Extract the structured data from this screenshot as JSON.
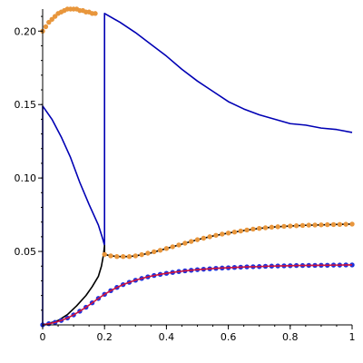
{
  "chart_data": {
    "type": "line",
    "title": "",
    "xlabel": "",
    "ylabel": "",
    "xlim": [
      0,
      1
    ],
    "ylim": [
      0,
      0.215
    ],
    "grid": false,
    "legend": "none",
    "x_ticks": [
      {
        "value": 0,
        "label": "0"
      },
      {
        "value": 0.2,
        "label": "0.2"
      },
      {
        "value": 0.4,
        "label": "0.4"
      },
      {
        "value": 0.6,
        "label": "0.6"
      },
      {
        "value": 0.8,
        "label": "0.8"
      },
      {
        "value": 1,
        "label": "1"
      }
    ],
    "y_ticks": [
      {
        "value": 0.05,
        "label": "0.05"
      },
      {
        "value": 0.1,
        "label": "0.10"
      },
      {
        "value": 0.15,
        "label": "0.15"
      },
      {
        "value": 0.2,
        "label": "0.20"
      }
    ],
    "series": [
      {
        "kind": "line",
        "color": "#0000b4",
        "points": [
          [
            0,
            0
          ],
          [
            0,
            0.149
          ],
          [
            0.03,
            0.14
          ],
          [
            0.06,
            0.128
          ],
          [
            0.09,
            0.114
          ],
          [
            0.12,
            0.097
          ],
          [
            0.15,
            0.082
          ],
          [
            0.18,
            0.068
          ],
          [
            0.195,
            0.058
          ],
          [
            0.2,
            0.054
          ],
          [
            0.2,
            0.212
          ],
          [
            0.25,
            0.206
          ],
          [
            0.3,
            0.199
          ],
          [
            0.35,
            0.191
          ],
          [
            0.4,
            0.183
          ],
          [
            0.45,
            0.174
          ],
          [
            0.5,
            0.166
          ],
          [
            0.55,
            0.159
          ],
          [
            0.6,
            0.152
          ],
          [
            0.65,
            0.147
          ],
          [
            0.7,
            0.143
          ],
          [
            0.75,
            0.14
          ],
          [
            0.8,
            0.137
          ],
          [
            0.85,
            0.136
          ],
          [
            0.9,
            0.134
          ],
          [
            0.95,
            0.133
          ],
          [
            1,
            0.131
          ]
        ]
      },
      {
        "kind": "line",
        "color": "#000000",
        "points": [
          [
            0,
            0
          ],
          [
            0.02,
            0.001
          ],
          [
            0.05,
            0.003
          ],
          [
            0.08,
            0.007
          ],
          [
            0.11,
            0.013
          ],
          [
            0.14,
            0.02
          ],
          [
            0.16,
            0.026
          ],
          [
            0.18,
            0.033
          ],
          [
            0.19,
            0.04
          ],
          [
            0.196,
            0.047
          ],
          [
            0.2,
            0.054
          ],
          [
            0.2,
            0.048
          ],
          [
            0.22,
            0.047
          ],
          [
            0.25,
            0.0465
          ],
          [
            0.28,
            0.0465
          ],
          [
            0.3,
            0.047
          ],
          [
            0.35,
            0.049
          ],
          [
            0.4,
            0.052
          ],
          [
            0.45,
            0.055
          ],
          [
            0.5,
            0.058
          ],
          [
            0.55,
            0.0605
          ],
          [
            0.6,
            0.0625
          ],
          [
            0.65,
            0.0642
          ],
          [
            0.7,
            0.0657
          ],
          [
            0.75,
            0.0667
          ],
          [
            0.8,
            0.0673
          ],
          [
            0.85,
            0.0678
          ],
          [
            0.9,
            0.0681
          ],
          [
            0.95,
            0.0684
          ],
          [
            1,
            0.0686
          ]
        ]
      },
      {
        "kind": "markers",
        "color": "#e8963c",
        "points": [
          [
            0,
            0.2
          ],
          [
            0.01,
            0.203
          ],
          [
            0.02,
            0.206
          ],
          [
            0.03,
            0.208
          ],
          [
            0.04,
            0.21
          ],
          [
            0.05,
            0.212
          ],
          [
            0.06,
            0.213
          ],
          [
            0.07,
            0.214
          ],
          [
            0.08,
            0.215
          ],
          [
            0.09,
            0.215
          ],
          [
            0.1,
            0.215
          ],
          [
            0.11,
            0.215
          ],
          [
            0.12,
            0.214
          ],
          [
            0.13,
            0.214
          ],
          [
            0.14,
            0.213
          ],
          [
            0.15,
            0.213
          ],
          [
            0.16,
            0.212
          ],
          [
            0.17,
            0.212
          ],
          [
            0.2,
            0.048
          ],
          [
            0.22,
            0.047
          ],
          [
            0.24,
            0.0465
          ],
          [
            0.26,
            0.0465
          ],
          [
            0.28,
            0.0465
          ],
          [
            0.3,
            0.047
          ],
          [
            0.32,
            0.0478
          ],
          [
            0.34,
            0.0488
          ],
          [
            0.36,
            0.0498
          ],
          [
            0.38,
            0.0508
          ],
          [
            0.4,
            0.052
          ],
          [
            0.42,
            0.0532
          ],
          [
            0.44,
            0.0544
          ],
          [
            0.46,
            0.0556
          ],
          [
            0.48,
            0.0568
          ],
          [
            0.5,
            0.058
          ],
          [
            0.52,
            0.059
          ],
          [
            0.54,
            0.06
          ],
          [
            0.56,
            0.061
          ],
          [
            0.58,
            0.0618
          ],
          [
            0.6,
            0.0625
          ],
          [
            0.62,
            0.0632
          ],
          [
            0.64,
            0.0639
          ],
          [
            0.66,
            0.0646
          ],
          [
            0.68,
            0.0652
          ],
          [
            0.7,
            0.0657
          ],
          [
            0.72,
            0.0661
          ],
          [
            0.74,
            0.0665
          ],
          [
            0.76,
            0.0668
          ],
          [
            0.78,
            0.0671
          ],
          [
            0.8,
            0.0673
          ],
          [
            0.82,
            0.0675
          ],
          [
            0.84,
            0.0677
          ],
          [
            0.86,
            0.0679
          ],
          [
            0.88,
            0.068
          ],
          [
            0.9,
            0.0681
          ],
          [
            0.92,
            0.0682
          ],
          [
            0.94,
            0.0683
          ],
          [
            0.96,
            0.0684
          ],
          [
            0.98,
            0.0685
          ],
          [
            1,
            0.0686
          ]
        ]
      },
      {
        "kind": "markers",
        "color": "#1e32dc",
        "points": [
          [
            0,
            0
          ],
          [
            0.02,
            0.0008
          ],
          [
            0.04,
            0.0017
          ],
          [
            0.06,
            0.003
          ],
          [
            0.08,
            0.0047
          ],
          [
            0.1,
            0.0068
          ],
          [
            0.12,
            0.0093
          ],
          [
            0.14,
            0.012
          ],
          [
            0.16,
            0.015
          ],
          [
            0.18,
            0.018
          ],
          [
            0.2,
            0.0208
          ],
          [
            0.22,
            0.0233
          ],
          [
            0.24,
            0.0255
          ],
          [
            0.26,
            0.0274
          ],
          [
            0.28,
            0.029
          ],
          [
            0.3,
            0.0304
          ],
          [
            0.32,
            0.0316
          ],
          [
            0.34,
            0.0327
          ],
          [
            0.36,
            0.0336
          ],
          [
            0.38,
            0.0344
          ],
          [
            0.4,
            0.0351
          ],
          [
            0.42,
            0.0357
          ],
          [
            0.44,
            0.0363
          ],
          [
            0.46,
            0.0368
          ],
          [
            0.48,
            0.0372
          ],
          [
            0.5,
            0.0376
          ],
          [
            0.52,
            0.0379
          ],
          [
            0.54,
            0.0382
          ],
          [
            0.56,
            0.0385
          ],
          [
            0.58,
            0.0387
          ],
          [
            0.6,
            0.0389
          ],
          [
            0.62,
            0.0391
          ],
          [
            0.64,
            0.0393
          ],
          [
            0.66,
            0.0395
          ],
          [
            0.68,
            0.0396
          ],
          [
            0.7,
            0.0397
          ],
          [
            0.72,
            0.0399
          ],
          [
            0.74,
            0.04
          ],
          [
            0.76,
            0.0401
          ],
          [
            0.78,
            0.0402
          ],
          [
            0.8,
            0.0403
          ],
          [
            0.82,
            0.0404
          ],
          [
            0.84,
            0.0404
          ],
          [
            0.86,
            0.0405
          ],
          [
            0.88,
            0.0405
          ],
          [
            0.9,
            0.0406
          ],
          [
            0.92,
            0.0406
          ],
          [
            0.94,
            0.0407
          ],
          [
            0.96,
            0.0407
          ],
          [
            0.98,
            0.0408
          ],
          [
            1,
            0.0408
          ]
        ]
      },
      {
        "kind": "line",
        "color": "#d2143c",
        "points": [
          [
            0,
            0
          ],
          [
            0.02,
            0.0008
          ],
          [
            0.04,
            0.0017
          ],
          [
            0.06,
            0.003
          ],
          [
            0.08,
            0.0047
          ],
          [
            0.1,
            0.0068
          ],
          [
            0.12,
            0.0093
          ],
          [
            0.14,
            0.012
          ],
          [
            0.16,
            0.015
          ],
          [
            0.18,
            0.018
          ],
          [
            0.2,
            0.0208
          ],
          [
            0.22,
            0.0233
          ],
          [
            0.24,
            0.0255
          ],
          [
            0.26,
            0.0274
          ],
          [
            0.28,
            0.029
          ],
          [
            0.3,
            0.0304
          ],
          [
            0.32,
            0.0316
          ],
          [
            0.34,
            0.0327
          ],
          [
            0.36,
            0.0336
          ],
          [
            0.38,
            0.0344
          ],
          [
            0.4,
            0.0351
          ],
          [
            0.42,
            0.0357
          ],
          [
            0.44,
            0.0363
          ],
          [
            0.46,
            0.0368
          ],
          [
            0.48,
            0.0372
          ],
          [
            0.5,
            0.0376
          ],
          [
            0.52,
            0.0379
          ],
          [
            0.54,
            0.0382
          ],
          [
            0.56,
            0.0385
          ],
          [
            0.58,
            0.0387
          ],
          [
            0.6,
            0.0389
          ],
          [
            0.62,
            0.0391
          ],
          [
            0.64,
            0.0393
          ],
          [
            0.66,
            0.0395
          ],
          [
            0.68,
            0.0396
          ],
          [
            0.7,
            0.0397
          ],
          [
            0.72,
            0.0399
          ],
          [
            0.74,
            0.04
          ],
          [
            0.76,
            0.0401
          ],
          [
            0.78,
            0.0402
          ],
          [
            0.8,
            0.0403
          ],
          [
            0.82,
            0.0404
          ],
          [
            0.84,
            0.0404
          ],
          [
            0.86,
            0.0405
          ],
          [
            0.88,
            0.0405
          ],
          [
            0.9,
            0.0406
          ],
          [
            0.92,
            0.0406
          ],
          [
            0.94,
            0.0407
          ],
          [
            0.96,
            0.0407
          ],
          [
            0.98,
            0.0408
          ],
          [
            1,
            0.0408
          ]
        ]
      }
    ]
  }
}
